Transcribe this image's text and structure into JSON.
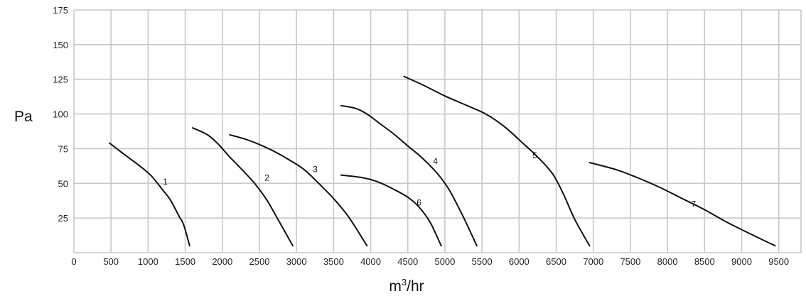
{
  "chart_data": {
    "type": "line",
    "xlabel": "m³/hr",
    "xlabel_base": "m",
    "xlabel_sup": "3",
    "xlabel_tail": "/hr",
    "ylabel": "Pa",
    "xlim": [
      0,
      9800
    ],
    "ylim": [
      0,
      175
    ],
    "x_ticks": [
      "0",
      "500",
      "1000",
      "1500",
      "2000",
      "2500",
      "3000",
      "3500",
      "4000",
      "4500",
      "5000",
      "5500",
      "6000",
      "6500",
      "7000",
      "7500",
      "8000",
      "8500",
      "9000",
      "9500"
    ],
    "y_ticks": [
      "25",
      "50",
      "75",
      "100",
      "125",
      "150",
      "175"
    ],
    "grid": true,
    "colors": {
      "grid": "#c8c8c8",
      "line": "#111111"
    },
    "series": [
      {
        "name": "1",
        "label_at": [
          1200,
          49
        ],
        "points": [
          [
            480,
            79
          ],
          [
            700,
            70
          ],
          [
            900,
            62
          ],
          [
            1050,
            55
          ],
          [
            1200,
            45
          ],
          [
            1300,
            38
          ],
          [
            1420,
            26
          ],
          [
            1480,
            20
          ],
          [
            1560,
            5
          ]
        ]
      },
      {
        "name": "2",
        "label_at": [
          2570,
          52
        ],
        "points": [
          [
            1600,
            90
          ],
          [
            1800,
            85
          ],
          [
            1950,
            78
          ],
          [
            2100,
            69
          ],
          [
            2300,
            58
          ],
          [
            2450,
            49
          ],
          [
            2600,
            38
          ],
          [
            2750,
            24
          ],
          [
            2950,
            5
          ]
        ]
      },
      {
        "name": "3",
        "label_at": [
          3220,
          58
        ],
        "points": [
          [
            2100,
            85
          ],
          [
            2300,
            82
          ],
          [
            2500,
            78
          ],
          [
            2700,
            73
          ],
          [
            2900,
            67
          ],
          [
            3100,
            60
          ],
          [
            3300,
            50
          ],
          [
            3500,
            39
          ],
          [
            3700,
            26
          ],
          [
            3950,
            5
          ]
        ]
      },
      {
        "name": "4",
        "label_at": [
          4840,
          64
        ],
        "points": [
          [
            3600,
            106
          ],
          [
            3800,
            104
          ],
          [
            3950,
            100
          ],
          [
            4100,
            94
          ],
          [
            4300,
            86
          ],
          [
            4500,
            77
          ],
          [
            4700,
            68
          ],
          [
            4900,
            57
          ],
          [
            5050,
            46
          ],
          [
            5200,
            31
          ],
          [
            5300,
            20
          ],
          [
            5430,
            5
          ]
        ]
      },
      {
        "name": "5",
        "label_at": [
          6180,
          68
        ],
        "points": [
          [
            4450,
            127
          ],
          [
            4700,
            121
          ],
          [
            5000,
            113
          ],
          [
            5300,
            106
          ],
          [
            5550,
            100
          ],
          [
            5800,
            91
          ],
          [
            6050,
            79
          ],
          [
            6250,
            69
          ],
          [
            6450,
            57
          ],
          [
            6600,
            42
          ],
          [
            6750,
            24
          ],
          [
            6950,
            5
          ]
        ]
      },
      {
        "name": "6",
        "label_at": [
          4620,
          34
        ],
        "points": [
          [
            3600,
            56
          ],
          [
            3900,
            54
          ],
          [
            4100,
            51
          ],
          [
            4300,
            46
          ],
          [
            4500,
            40
          ],
          [
            4650,
            33
          ],
          [
            4800,
            22
          ],
          [
            4950,
            5
          ]
        ]
      },
      {
        "name": "7",
        "label_at": [
          8320,
          33
        ],
        "points": [
          [
            6950,
            65
          ],
          [
            7300,
            60
          ],
          [
            7600,
            54
          ],
          [
            7900,
            47
          ],
          [
            8200,
            39
          ],
          [
            8500,
            31
          ],
          [
            8800,
            22
          ],
          [
            9100,
            14
          ],
          [
            9450,
            5
          ]
        ]
      }
    ]
  }
}
